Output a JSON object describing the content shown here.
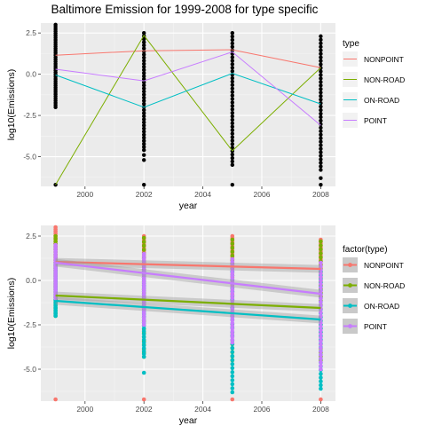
{
  "chart_data": [
    {
      "type": "line",
      "title": "Baltimore Emission for 1999-2008 for type specific",
      "xlabel": "year",
      "ylabel": "log10(Emissions)",
      "xlim": [
        1998.5,
        2008.5
      ],
      "ylim": [
        -6.8,
        3.1
      ],
      "xticks": [
        2000,
        2002,
        2004,
        2006,
        2008
      ],
      "yticks": [
        -5.0,
        -2.5,
        0.0,
        2.5
      ],
      "ytick_labels": [
        "-5.0",
        "-2.5",
        "0.0",
        "2.5"
      ],
      "grid": true,
      "legend": {
        "title": "type",
        "placement": "right"
      },
      "x": [
        1999,
        2002,
        2005,
        2008
      ],
      "series": [
        {
          "name": "NONPOINT",
          "color": "#F8766D",
          "values": [
            1.15,
            1.42,
            1.48,
            0.4
          ]
        },
        {
          "name": "NON-ROAD",
          "color": "#7CAE00",
          "values": [
            -6.7,
            2.35,
            -4.65,
            0.4
          ]
        },
        {
          "name": "ON-ROAD",
          "color": "#00BFC4",
          "values": [
            -0.05,
            -2.0,
            0.05,
            -1.8
          ]
        },
        {
          "name": "POINT",
          "color": "#C77CFF",
          "values": [
            0.3,
            -0.4,
            1.35,
            -3.1
          ]
        }
      ],
      "points_color": "#000000",
      "points": {
        "x": [
          1999,
          2002,
          2005,
          2008
        ],
        "ranges": [
          [
            -2.0,
            3.0
          ],
          [
            -4.6,
            2.5
          ],
          [
            -5.5,
            2.5
          ],
          [
            -5.8,
            2.3
          ]
        ],
        "outliers": [
          [
            1999,
            -6.7
          ],
          [
            2002,
            -6.7
          ],
          [
            2005,
            -6.7
          ],
          [
            2008,
            -6.7
          ],
          [
            2002,
            -4.9
          ],
          [
            2002,
            -5.2
          ],
          [
            2008,
            -6.3
          ]
        ]
      }
    },
    {
      "type": "scatter",
      "xlabel": "year",
      "ylabel": "log10(Emissions)",
      "xlim": [
        1998.5,
        2008.5
      ],
      "ylim": [
        -6.8,
        3.1
      ],
      "xticks": [
        2000,
        2002,
        2004,
        2006,
        2008
      ],
      "yticks": [
        -5.0,
        -2.5,
        0.0,
        2.5
      ],
      "ytick_labels": [
        "-5.0",
        "-2.5",
        "0.0",
        "2.5"
      ],
      "grid": true,
      "legend": {
        "title": "factor(type)",
        "placement": "right"
      },
      "x": [
        1999,
        2002,
        2005,
        2008
      ],
      "series": [
        {
          "name": "NONPOINT",
          "color": "#F8766D",
          "trend": [
            1.05,
            0.65
          ],
          "ranges": [
            [
              -0.5,
              3.0
            ],
            [
              -1.0,
              2.5
            ],
            [
              -1.0,
              2.5
            ],
            [
              -1.0,
              2.3
            ]
          ],
          "outliers": [
            [
              1999,
              -6.7
            ],
            [
              2002,
              -6.7
            ],
            [
              2005,
              -6.7
            ],
            [
              2008,
              -6.7
            ]
          ]
        },
        {
          "name": "NON-ROAD",
          "color": "#7CAE00",
          "trend": [
            -0.85,
            -1.55
          ],
          "ranges": [
            [
              -2.0,
              2.5
            ],
            [
              -4.3,
              2.4
            ],
            [
              -4.5,
              2.3
            ],
            [
              -4.5,
              2.2
            ]
          ],
          "outliers": []
        },
        {
          "name": "ON-ROAD",
          "color": "#00BFC4",
          "trend": [
            -1.15,
            -2.2
          ],
          "ranges": [
            [
              -2.0,
              1.0
            ],
            [
              -4.3,
              0.5
            ],
            [
              -6.3,
              0.5
            ],
            [
              -5.9,
              0.5
            ]
          ],
          "outliers": [
            [
              2002,
              -5.2
            ],
            [
              2008,
              -6.1
            ]
          ]
        },
        {
          "name": "POINT",
          "color": "#C77CFF",
          "trend": [
            1.0,
            -0.75
          ],
          "ranges": [
            [
              -1.0,
              2.0
            ],
            [
              -2.5,
              1.5
            ],
            [
              -3.5,
              1.2
            ],
            [
              -5.0,
              1.0
            ]
          ],
          "outliers": []
        }
      ]
    }
  ]
}
